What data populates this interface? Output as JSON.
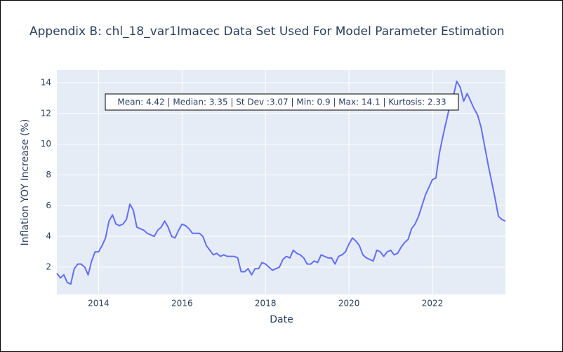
{
  "chart_data": {
    "type": "line",
    "title": "Appendix B: chl_18_var1Imacec Data Set Used For Model Parameter Estimation",
    "x_label": "Date",
    "y_label": "Inflation YOY Increase (%)",
    "annotation": "Mean: 4.42 | Median: 3.35 | St Dev :3.07 | Min: 0.9 | Max: 14.1 | Kurtosis: 2.33",
    "x": [
      "2013-01",
      "2013-02",
      "2013-03",
      "2013-04",
      "2013-05",
      "2013-06",
      "2013-07",
      "2013-08",
      "2013-09",
      "2013-10",
      "2013-11",
      "2013-12",
      "2014-01",
      "2014-02",
      "2014-03",
      "2014-04",
      "2014-05",
      "2014-06",
      "2014-07",
      "2014-08",
      "2014-09",
      "2014-10",
      "2014-11",
      "2014-12",
      "2015-01",
      "2015-02",
      "2015-03",
      "2015-04",
      "2015-05",
      "2015-06",
      "2015-07",
      "2015-08",
      "2015-09",
      "2015-10",
      "2015-11",
      "2015-12",
      "2016-01",
      "2016-02",
      "2016-03",
      "2016-04",
      "2016-05",
      "2016-06",
      "2016-07",
      "2016-08",
      "2016-09",
      "2016-10",
      "2016-11",
      "2016-12",
      "2017-01",
      "2017-02",
      "2017-03",
      "2017-04",
      "2017-05",
      "2017-06",
      "2017-07",
      "2017-08",
      "2017-09",
      "2017-10",
      "2017-11",
      "2017-12",
      "2018-01",
      "2018-02",
      "2018-03",
      "2018-04",
      "2018-05",
      "2018-06",
      "2018-07",
      "2018-08",
      "2018-09",
      "2018-10",
      "2018-11",
      "2018-12",
      "2019-01",
      "2019-02",
      "2019-03",
      "2019-04",
      "2019-05",
      "2019-06",
      "2019-07",
      "2019-08",
      "2019-09",
      "2019-10",
      "2019-11",
      "2019-12",
      "2020-01",
      "2020-02",
      "2020-03",
      "2020-04",
      "2020-05",
      "2020-06",
      "2020-07",
      "2020-08",
      "2020-09",
      "2020-10",
      "2020-11",
      "2020-12",
      "2021-01",
      "2021-02",
      "2021-03",
      "2021-04",
      "2021-05",
      "2021-06",
      "2021-07",
      "2021-08",
      "2021-09",
      "2021-10",
      "2021-11",
      "2021-12",
      "2022-01",
      "2022-02",
      "2022-03",
      "2022-04",
      "2022-05",
      "2022-06",
      "2022-07",
      "2022-08",
      "2022-09",
      "2022-10",
      "2022-11",
      "2022-12",
      "2023-01",
      "2023-02",
      "2023-03",
      "2023-04",
      "2023-05",
      "2023-06",
      "2023-07",
      "2023-08",
      "2023-09",
      "2023-10"
    ],
    "values": [
      1.6,
      1.3,
      1.5,
      1.0,
      0.9,
      1.9,
      2.2,
      2.2,
      2.0,
      1.5,
      2.4,
      3.0,
      3.0,
      3.4,
      3.9,
      5.0,
      5.4,
      4.8,
      4.7,
      4.8,
      5.1,
      6.1,
      5.7,
      4.6,
      4.5,
      4.4,
      4.2,
      4.1,
      4.0,
      4.4,
      4.6,
      5.0,
      4.6,
      4.0,
      3.9,
      4.4,
      4.8,
      4.7,
      4.5,
      4.2,
      4.2,
      4.2,
      4.0,
      3.4,
      3.1,
      2.8,
      2.9,
      2.7,
      2.8,
      2.7,
      2.7,
      2.7,
      2.6,
      1.7,
      1.7,
      1.9,
      1.5,
      1.9,
      1.9,
      2.3,
      2.2,
      2.0,
      1.8,
      1.9,
      2.0,
      2.5,
      2.7,
      2.6,
      3.1,
      2.9,
      2.8,
      2.6,
      2.2,
      2.2,
      2.4,
      2.3,
      2.8,
      2.7,
      2.6,
      2.6,
      2.2,
      2.7,
      2.8,
      3.0,
      3.5,
      3.9,
      3.7,
      3.4,
      2.8,
      2.6,
      2.5,
      2.4,
      3.1,
      3.0,
      2.7,
      3.0,
      3.1,
      2.8,
      2.9,
      3.3,
      3.6,
      3.8,
      4.5,
      4.8,
      5.3,
      6.0,
      6.7,
      7.2,
      7.7,
      7.8,
      9.4,
      10.5,
      11.5,
      12.5,
      13.1,
      14.1,
      13.7,
      12.8,
      13.3,
      12.8,
      12.3,
      11.9,
      11.1,
      9.9,
      8.7,
      7.6,
      6.5,
      5.3,
      5.1,
      5.0
    ],
    "color": "#636efa",
    "xlim": [
      "2013-01",
      "2023-10"
    ],
    "xticks": [
      {
        "value": "2014-01",
        "label": "2014"
      },
      {
        "value": "2016-01",
        "label": "2016"
      },
      {
        "value": "2018-01",
        "label": "2018"
      },
      {
        "value": "2020-01",
        "label": "2020"
      },
      {
        "value": "2022-01",
        "label": "2022"
      }
    ],
    "ylim": [
      0.22,
      14.82
    ],
    "yticks": [
      2,
      4,
      6,
      8,
      10,
      12,
      14
    ],
    "grid": true
  }
}
